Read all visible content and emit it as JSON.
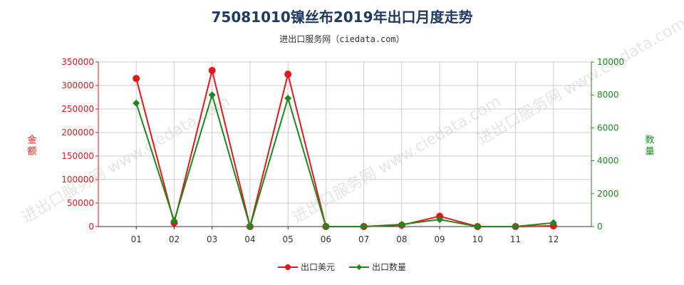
{
  "title": "75081010镍丝布2019年出口月度走势",
  "subtitle": "进出口服务网（ciedata.com）",
  "watermark": "进出口服务网 www.ciedata.com",
  "colors": {
    "left_axis": "#e8161b",
    "right_axis": "#1a8a1a",
    "grid": "#cccccc",
    "title": "#1f3a5f"
  },
  "chart_data": {
    "type": "line",
    "categories": [
      "01",
      "02",
      "03",
      "04",
      "05",
      "06",
      "07",
      "08",
      "09",
      "10",
      "11",
      "12"
    ],
    "y_left": {
      "label": "金额",
      "min": 0,
      "max": 350000,
      "ticks": [
        0,
        50000,
        100000,
        150000,
        200000,
        250000,
        300000,
        350000
      ]
    },
    "y_right": {
      "label": "数量",
      "min": 0,
      "max": 10000,
      "ticks": [
        0,
        2000,
        4000,
        6000,
        8000,
        10000
      ]
    },
    "grid": true,
    "legend_position": "bottom",
    "series": [
      {
        "name": "出口美元",
        "axis": "left",
        "color": "#e8161b",
        "values": [
          315000,
          8000,
          332000,
          0,
          324000,
          0,
          0,
          3000,
          22000,
          0,
          0,
          1500
        ]
      },
      {
        "name": "出口数量",
        "axis": "right",
        "color": "#1a8a1a",
        "values": [
          7500,
          350,
          8000,
          0,
          7800,
          0,
          0,
          130,
          430,
          0,
          0,
          230
        ]
      }
    ]
  }
}
